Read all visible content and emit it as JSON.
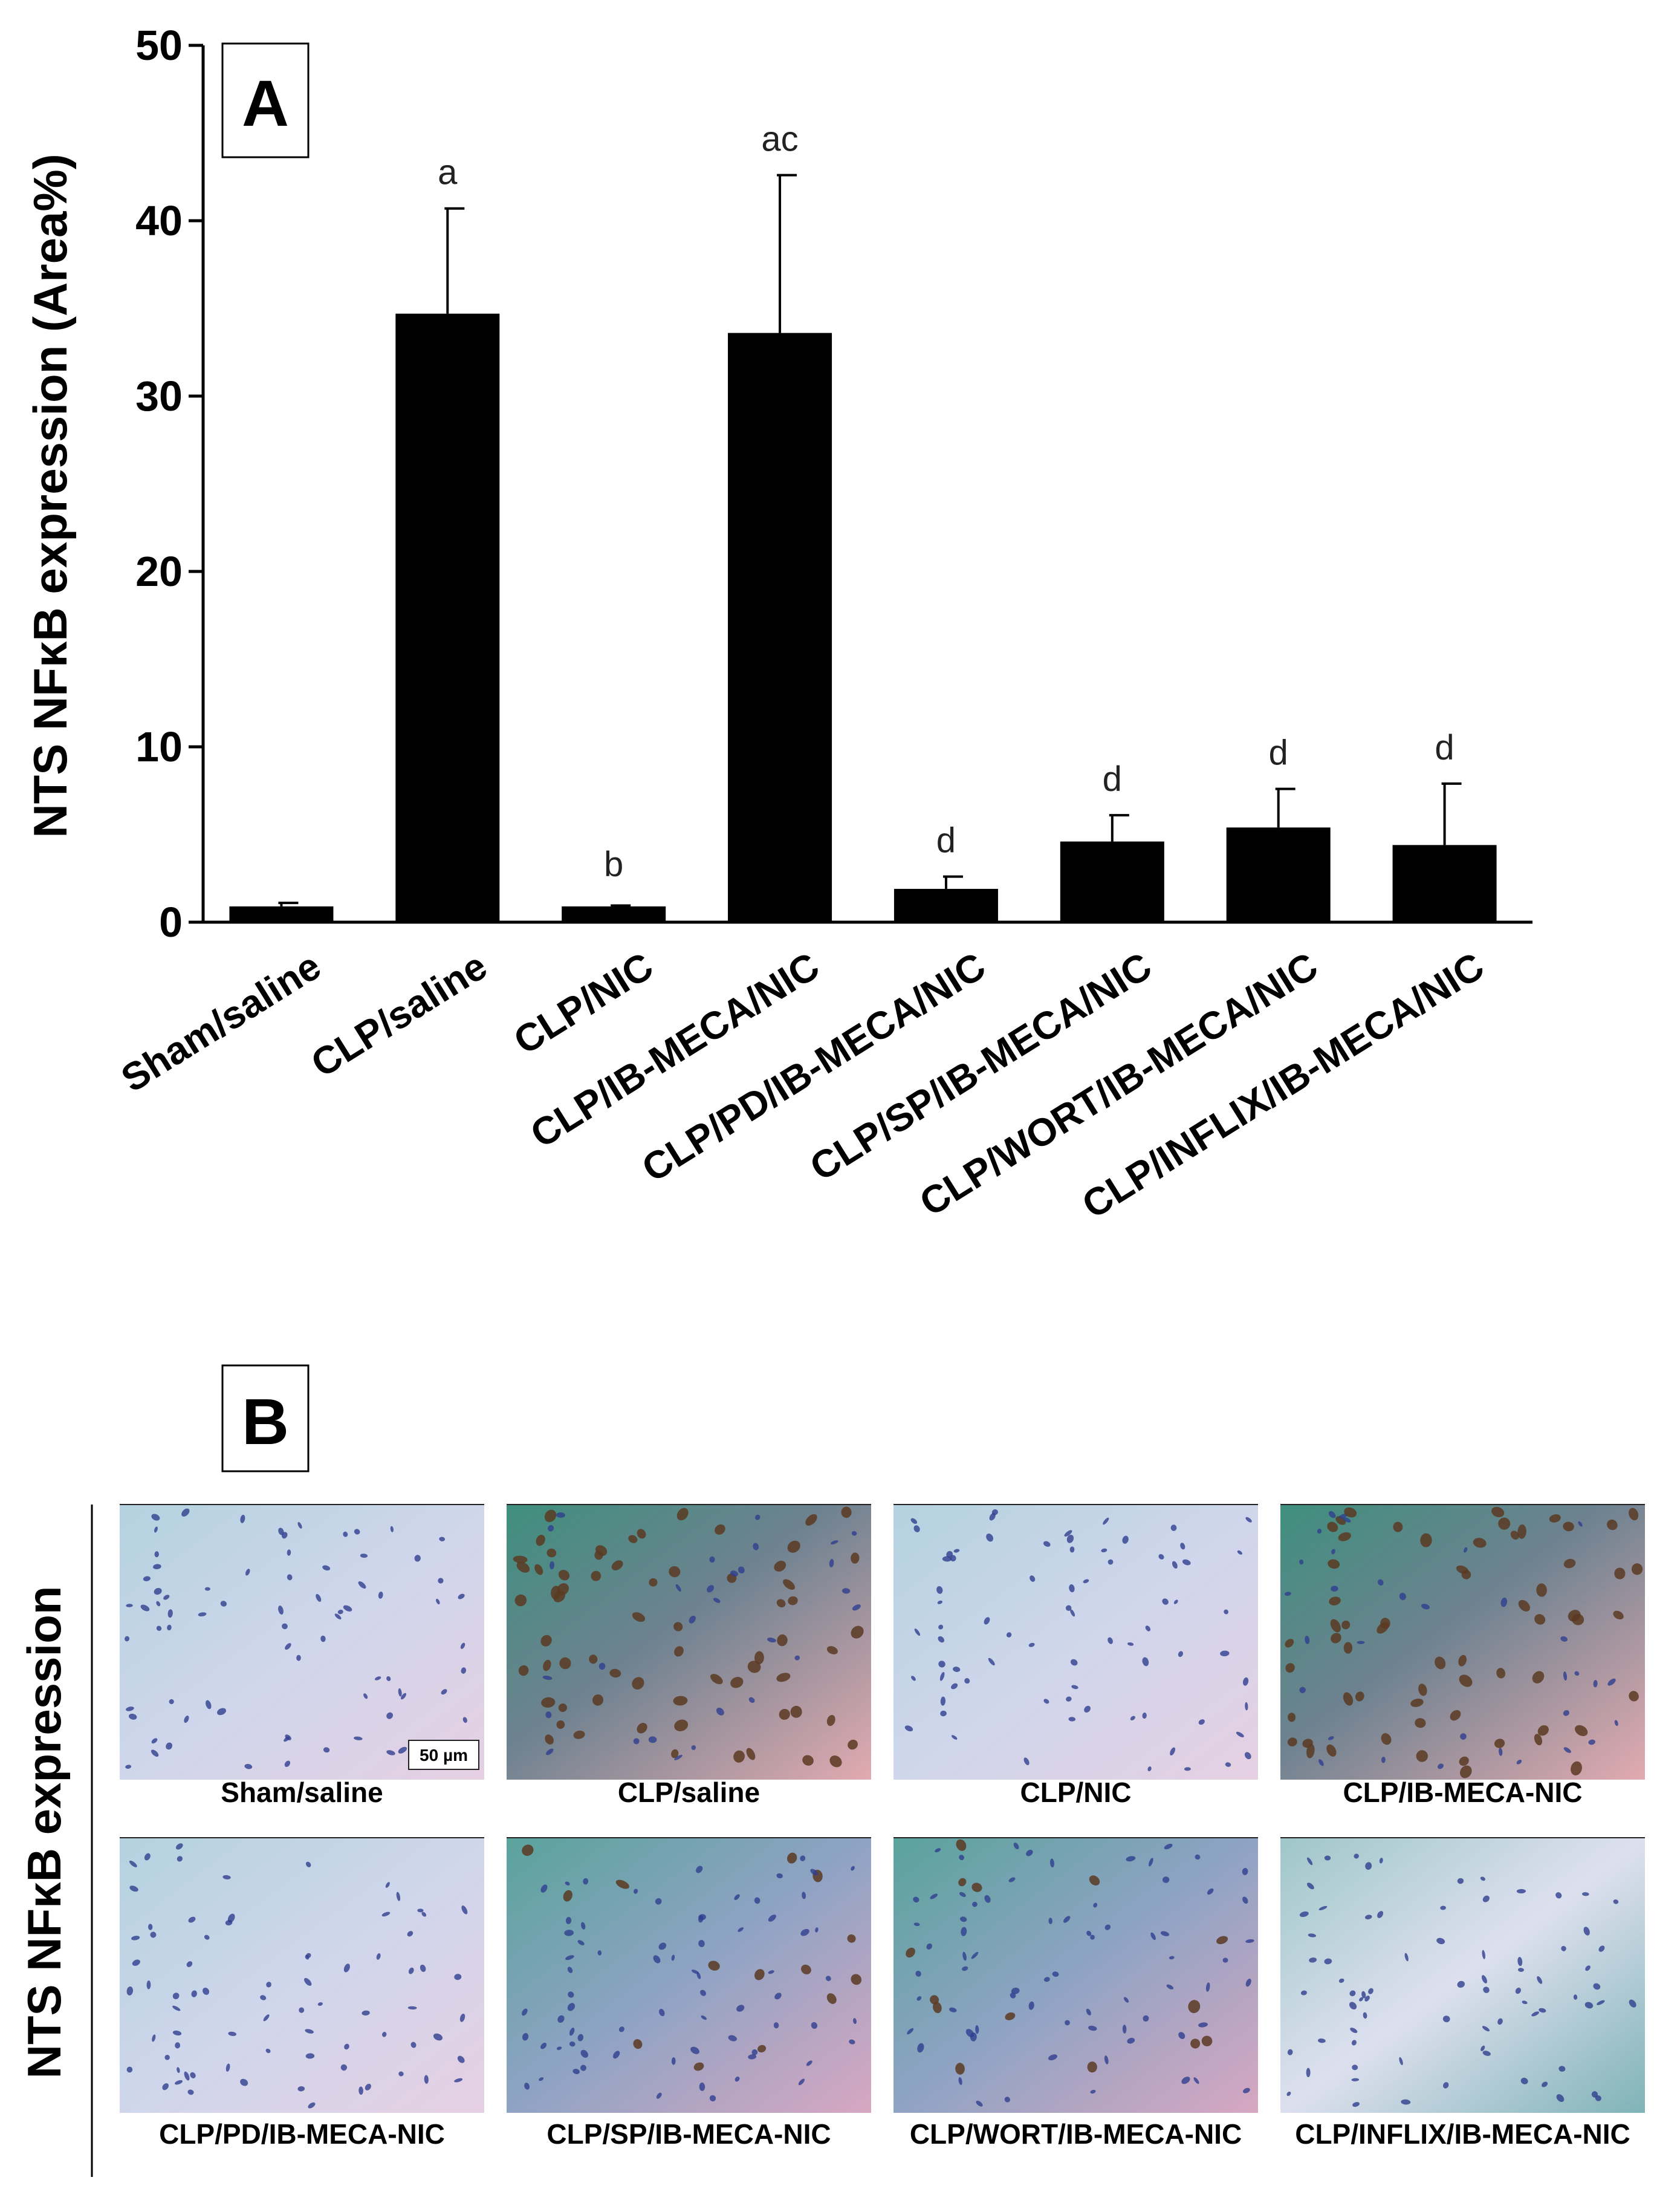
{
  "panel_a": {
    "letter": "A"
  },
  "panel_b": {
    "letter": "B",
    "side_label": "NTS NFκB expression",
    "scale_bar": "50 µm",
    "images": [
      {
        "label": "Sham/saline",
        "staining": "light"
      },
      {
        "label": "CLP/saline",
        "staining": "heavy"
      },
      {
        "label": "CLP/NIC",
        "staining": "light"
      },
      {
        "label": "CLP/IB-MECA-NIC",
        "staining": "heavy"
      },
      {
        "label": "CLP/PD/IB-MECA-NIC",
        "staining": "light"
      },
      {
        "label": "CLP/SP/IB-MECA-NIC",
        "staining": "moderate"
      },
      {
        "label": "CLP/WORT/IB-MECA-NIC",
        "staining": "moderate"
      },
      {
        "label": "CLP/INFLIX/IB-MECA-NIC",
        "staining": "light"
      }
    ]
  },
  "colors": {
    "bar": "#000000",
    "axis": "#000000",
    "text": "#000000",
    "stain": "#5a3a22",
    "nuclei": "#2f3f8f"
  },
  "chart_data": {
    "type": "bar",
    "title": "",
    "xlabel": "",
    "ylabel": "NTS NFκB expression (Area%)",
    "ylim": [
      0,
      50
    ],
    "yticks": [
      0,
      10,
      20,
      30,
      40,
      50
    ],
    "categories": [
      "Sham/saline",
      "CLP/saline",
      "CLP/NIC",
      "CLP/IB-MECA/NIC",
      "CLP/PD/IB-MECA/NIC",
      "CLP/SP/IB-MECA/NIC",
      "CLP/WORT/IB-MECA/NIC",
      "CLP/INFLIX/IB-MECA/NIC"
    ],
    "values": [
      0.9,
      34.7,
      0.9,
      33.6,
      1.9,
      4.6,
      5.4,
      4.4
    ],
    "errors": [
      0.2,
      6.0,
      0.05,
      9.0,
      0.7,
      1.5,
      2.2,
      3.5
    ],
    "annotations": [
      "",
      "a",
      "b",
      "ac",
      "d",
      "d",
      "d",
      "d"
    ]
  }
}
